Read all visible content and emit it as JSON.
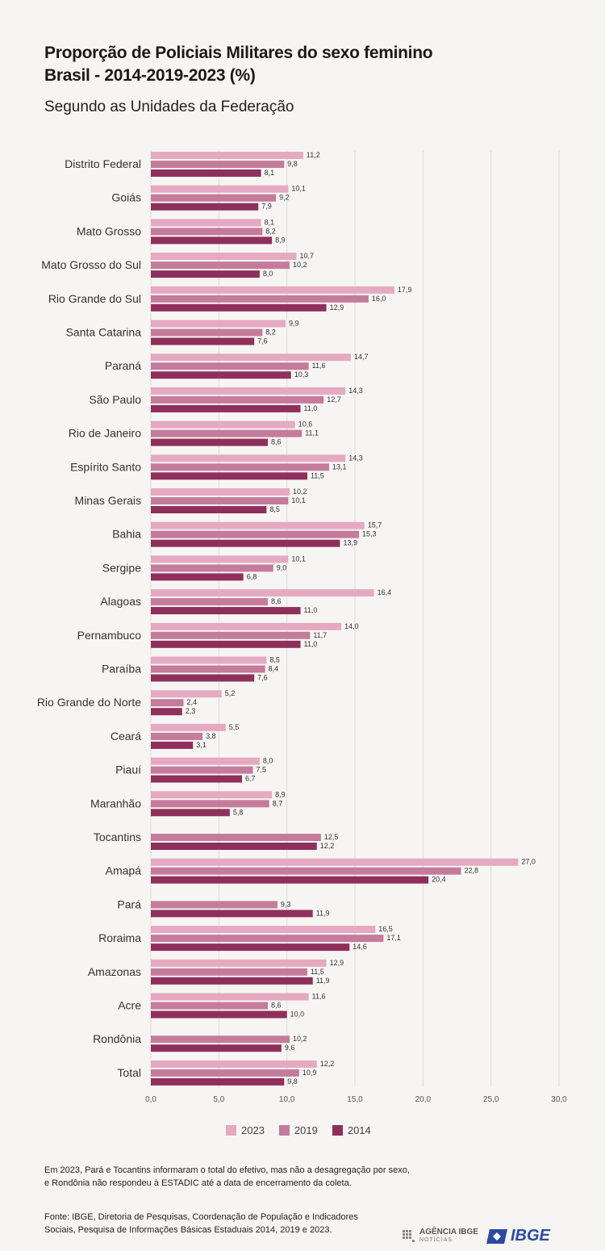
{
  "title_line1": "Proporção de Policiais Militares do sexo feminino",
  "title_line2": "Brasil - 2014-2019-2023 (%)",
  "subtitle": "Segundo as Unidades da Federação",
  "note_line1": "Em 2023, Pará e Tocantins informaram o total do efetivo, mas não a desagregação por sexo,",
  "note_line2": "e Rondônia não respondeu à ESTADIC até a data de encerramento da coleta.",
  "source_line1": "Fonte: IBGE, Diretoria de Pesquisas, Coordenação de População e Indicadores",
  "source_line2": "Sociais, Pesquisa de Informações Básicas Estaduais 2014, 2019 e 2023.",
  "logo_agencia": "AGÊNCIA IBGE",
  "logo_noticias": "NOTÍCIAS",
  "logo_ibge": "IBGE",
  "colors": {
    "2023": "#e5a9c1",
    "2019": "#c57b9b",
    "2014": "#8f2f5c",
    "background": "#f7f5f3",
    "ibge_blue": "#2b4aa0"
  },
  "chart_data": {
    "type": "bar",
    "orientation": "horizontal",
    "categories": [
      "Distrito Federal",
      "Goiás",
      "Mato Grosso",
      "Mato Grosso do Sul",
      "Rio Grande do Sul",
      "Santa Catarina",
      "Paraná",
      "São Paulo",
      "Rio de Janeiro",
      "Espírito Santo",
      "Minas Gerais",
      "Bahia",
      "Sergipe",
      "Alagoas",
      "Pernambuco",
      "Paraíba",
      "Rio Grande do Norte",
      "Ceará",
      "Piauí",
      "Maranhão",
      "Tocantins",
      "Amapá",
      "Pará",
      "Roraima",
      "Amazonas",
      "Acre",
      "Rondônia",
      "Total"
    ],
    "series": [
      {
        "name": "2023",
        "values": [
          11.2,
          10.1,
          8.1,
          10.7,
          17.9,
          9.9,
          14.7,
          14.3,
          10.6,
          14.3,
          10.2,
          15.7,
          10.1,
          16.4,
          14.0,
          8.5,
          5.2,
          5.5,
          8.0,
          8.9,
          null,
          27.0,
          null,
          16.5,
          12.9,
          11.6,
          null,
          12.2
        ],
        "labels": [
          "11,2",
          "10,1",
          "8,1",
          "10,7",
          "17,9",
          "9,9",
          "14,7",
          "14,3",
          "10,6",
          "14,3",
          "10,2",
          "15,7",
          "10,1",
          "16,4",
          "14,0",
          "8,5",
          "5,2",
          "5,5",
          "8,0",
          "8,9",
          null,
          "27,0",
          null,
          "16,5",
          "12,9",
          "11,6",
          null,
          "12,2"
        ]
      },
      {
        "name": "2019",
        "values": [
          9.8,
          9.2,
          8.2,
          10.2,
          16.0,
          8.2,
          11.6,
          12.7,
          11.1,
          13.1,
          10.1,
          15.3,
          9.0,
          8.6,
          11.7,
          8.4,
          2.4,
          3.8,
          7.5,
          8.7,
          12.5,
          22.8,
          9.3,
          17.1,
          11.5,
          8.6,
          10.2,
          10.9
        ],
        "labels": [
          "9,8",
          "9,2",
          "8,2",
          "10,2",
          "16,0",
          "8,2",
          "11,6",
          "12,7",
          "11,1",
          "13,1",
          "10,1",
          "15,3",
          "9,0",
          "8,6",
          "11,7",
          "8,4",
          "2,4",
          "3,8",
          "7,5",
          "8,7",
          "12,5",
          "22,8",
          "9,3",
          "17,1",
          "11,5",
          "8,6",
          "10,2",
          "10,9"
        ]
      },
      {
        "name": "2014",
        "values": [
          8.1,
          7.9,
          8.9,
          8.0,
          12.9,
          7.6,
          10.3,
          11.0,
          8.6,
          11.5,
          8.5,
          13.9,
          6.8,
          11.0,
          11.0,
          7.6,
          2.3,
          3.1,
          6.7,
          5.8,
          12.2,
          20.4,
          11.9,
          14.6,
          11.9,
          10.0,
          9.6,
          9.8
        ],
        "labels": [
          "8,1",
          "7,9",
          "8,9",
          "8,0",
          "12,9",
          "7,6",
          "10,3",
          "11,0",
          "8,6",
          "11,5",
          "8,5",
          "13,9",
          "6,8",
          "11,0",
          "11,0",
          "7,6",
          "2,3",
          "3,1",
          "6,7",
          "5,8",
          "12,2",
          "20,4",
          "11,9",
          "14,6",
          "11,9",
          "10,0",
          "9,6",
          "9,8"
        ]
      }
    ],
    "xlim": [
      0,
      30
    ],
    "ticks": [
      0,
      5,
      10,
      15,
      20,
      25,
      30
    ],
    "tick_labels": [
      "0,0",
      "5,0",
      "10,0",
      "15,0",
      "20,0",
      "25,0",
      "30,0"
    ],
    "grid": "vertical",
    "legend_position": "bottom"
  }
}
